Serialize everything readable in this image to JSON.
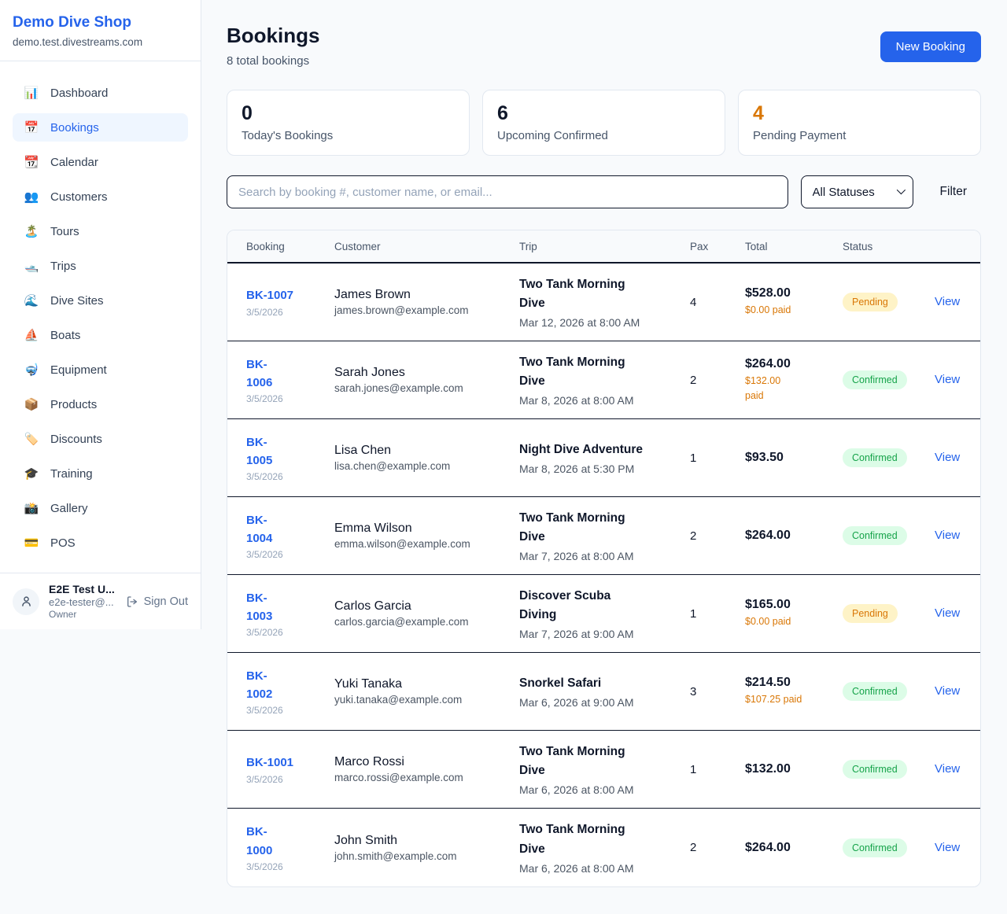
{
  "sidebar": {
    "brand": {
      "name": "Demo Dive Shop",
      "domain": "demo.test.divestreams.com"
    },
    "items": [
      {
        "label": "Dashboard",
        "icon": "📊",
        "active": false
      },
      {
        "label": "Bookings",
        "icon": "📅",
        "active": true
      },
      {
        "label": "Calendar",
        "icon": "📆",
        "active": false
      },
      {
        "label": "Customers",
        "icon": "👥",
        "active": false
      },
      {
        "label": "Tours",
        "icon": "🏝️",
        "active": false
      },
      {
        "label": "Trips",
        "icon": "🛥️",
        "active": false
      },
      {
        "label": "Dive Sites",
        "icon": "🌊",
        "active": false
      },
      {
        "label": "Boats",
        "icon": "⛵",
        "active": false
      },
      {
        "label": "Equipment",
        "icon": "🤿",
        "active": false
      },
      {
        "label": "Products",
        "icon": "📦",
        "active": false
      },
      {
        "label": "Discounts",
        "icon": "🏷️",
        "active": false
      },
      {
        "label": "Training",
        "icon": "🎓",
        "active": false
      },
      {
        "label": "Gallery",
        "icon": "📸",
        "active": false
      },
      {
        "label": "POS",
        "icon": "💳",
        "active": false
      }
    ],
    "user": {
      "name": "E2E Test U...",
      "email": "e2e-tester@...",
      "role": "Owner",
      "sign_out_label": "Sign Out"
    }
  },
  "header": {
    "title": "Bookings",
    "subtitle": "8 total bookings",
    "new_booking_label": "New Booking"
  },
  "stats": [
    {
      "value": "0",
      "label": "Today's Bookings",
      "accent": false
    },
    {
      "value": "6",
      "label": "Upcoming Confirmed",
      "accent": false
    },
    {
      "value": "4",
      "label": "Pending Payment",
      "accent": true
    }
  ],
  "filters": {
    "search_placeholder": "Search by booking #, customer name, or email...",
    "status_selected": "All Statuses",
    "filter_label": "Filter"
  },
  "table": {
    "columns": [
      "Booking",
      "Customer",
      "Trip",
      "Pax",
      "Total",
      "Status"
    ],
    "view_label": "View",
    "rows": [
      {
        "id": "BK-1007",
        "id_wrap": false,
        "date": "3/5/2026",
        "customer_name": "James Brown",
        "customer_email": "james.brown@example.com",
        "trip_name": "Two Tank Morning Dive",
        "trip_datetime": "Mar 12, 2026 at 8:00 AM",
        "pax": "4",
        "total": "$528.00",
        "paid": "$0.00 paid",
        "paid_wrap": false,
        "status": "Pending"
      },
      {
        "id": "BK-1006",
        "id_wrap": true,
        "date": "3/5/2026",
        "customer_name": "Sarah Jones",
        "customer_email": "sarah.jones@example.com",
        "trip_name": "Two Tank Morning Dive",
        "trip_datetime": "Mar 8, 2026 at 8:00 AM",
        "pax": "2",
        "total": "$264.00",
        "paid": "$132.00 paid",
        "paid_wrap": true,
        "status": "Confirmed"
      },
      {
        "id": "BK-1005",
        "id_wrap": true,
        "date": "3/5/2026",
        "customer_name": "Lisa Chen",
        "customer_email": "lisa.chen@example.com",
        "trip_name": "Night Dive Adventure",
        "trip_datetime": "Mar 8, 2026 at 5:30 PM",
        "pax": "1",
        "total": "$93.50",
        "paid": "",
        "paid_wrap": false,
        "status": "Confirmed"
      },
      {
        "id": "BK-1004",
        "id_wrap": true,
        "date": "3/5/2026",
        "customer_name": "Emma Wilson",
        "customer_email": "emma.wilson@example.com",
        "trip_name": "Two Tank Morning Dive",
        "trip_datetime": "Mar 7, 2026 at 8:00 AM",
        "pax": "2",
        "total": "$264.00",
        "paid": "",
        "paid_wrap": false,
        "status": "Confirmed"
      },
      {
        "id": "BK-1003",
        "id_wrap": true,
        "date": "3/5/2026",
        "customer_name": "Carlos Garcia",
        "customer_email": "carlos.garcia@example.com",
        "trip_name": "Discover Scuba Diving",
        "trip_datetime": "Mar 7, 2026 at 9:00 AM",
        "pax": "1",
        "total": "$165.00",
        "paid": "$0.00 paid",
        "paid_wrap": false,
        "status": "Pending"
      },
      {
        "id": "BK-1002",
        "id_wrap": true,
        "date": "3/5/2026",
        "customer_name": "Yuki Tanaka",
        "customer_email": "yuki.tanaka@example.com",
        "trip_name": "Snorkel Safari",
        "trip_datetime": "Mar 6, 2026 at 9:00 AM",
        "pax": "3",
        "total": "$214.50",
        "paid": "$107.25 paid",
        "paid_wrap": false,
        "status": "Confirmed"
      },
      {
        "id": "BK-1001",
        "id_wrap": false,
        "date": "3/5/2026",
        "customer_name": "Marco Rossi",
        "customer_email": "marco.rossi@example.com",
        "trip_name": "Two Tank Morning Dive",
        "trip_datetime": "Mar 6, 2026 at 8:00 AM",
        "pax": "1",
        "total": "$132.00",
        "paid": "",
        "paid_wrap": false,
        "status": "Confirmed"
      },
      {
        "id": "BK-1000",
        "id_wrap": true,
        "date": "3/5/2026",
        "customer_name": "John Smith",
        "customer_email": "john.smith@example.com",
        "trip_name": "Two Tank Morning Dive",
        "trip_datetime": "Mar 6, 2026 at 8:00 AM",
        "pax": "2",
        "total": "$264.00",
        "paid": "",
        "paid_wrap": false,
        "status": "Confirmed"
      }
    ]
  },
  "colors": {
    "primary_blue": "#2563eb",
    "dark_text": "#0f172a",
    "muted_text": "#475569",
    "accent_orange": "#d97706",
    "pending_bg": "#fef3c7",
    "confirmed_green": "#16a34a",
    "confirmed_bg": "#dcfce7",
    "page_bg": "#f8fafc",
    "card_border": "#e2e8f0"
  }
}
